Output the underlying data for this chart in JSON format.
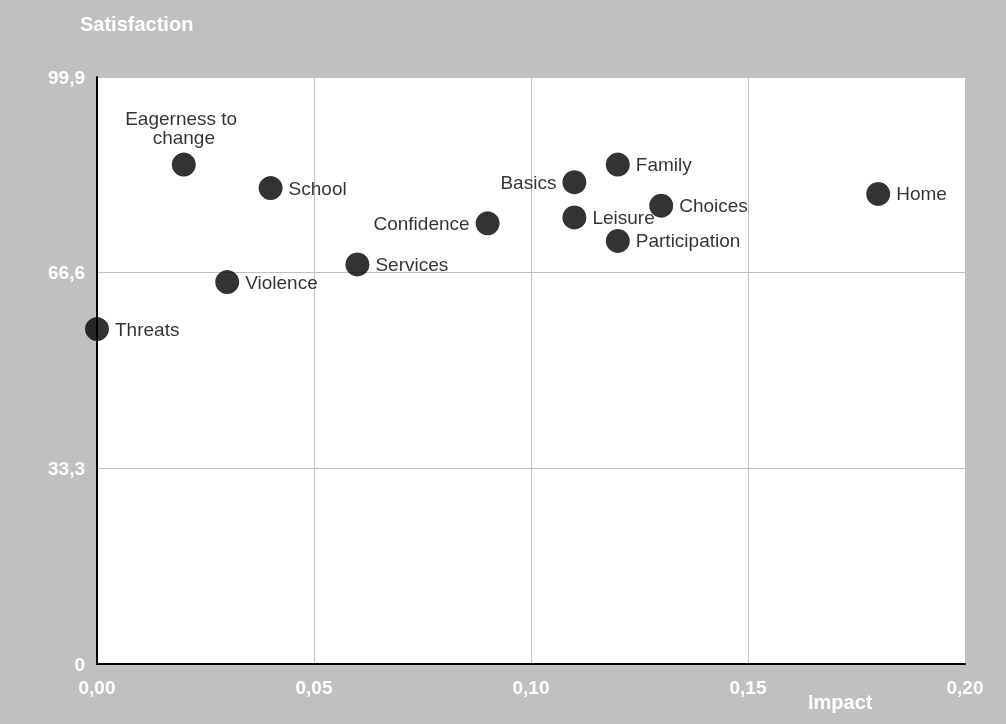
{
  "chart_data": {
    "type": "scatter",
    "xlabel": "Impact",
    "ylabel": "Satisfaction",
    "series": [
      {
        "name": "Eagerness to change",
        "color": "#000000",
        "x": [
          0.02
        ],
        "values": [
          85
        ]
      },
      {
        "name": "School",
        "color": "#000000",
        "x": [
          0.04
        ],
        "values": [
          81
        ]
      },
      {
        "name": "Violence",
        "color": "#000000",
        "x": [
          0.03
        ],
        "values": [
          65
        ]
      },
      {
        "name": "Threats",
        "color": "#000000",
        "x": [
          0.0
        ],
        "values": [
          57
        ]
      },
      {
        "name": "Services",
        "color": "#000000",
        "x": [
          0.06
        ],
        "values": [
          68
        ]
      },
      {
        "name": "Confidence",
        "color": "#000000",
        "x": [
          0.09
        ],
        "values": [
          75
        ]
      },
      {
        "name": "Basics",
        "color": "#000000",
        "x": [
          0.11
        ],
        "values": [
          82
        ]
      },
      {
        "name": "Leisure",
        "color": "#000000",
        "x": [
          0.11
        ],
        "values": [
          76
        ]
      },
      {
        "name": "Family",
        "color": "#000000",
        "x": [
          0.12
        ],
        "values": [
          85
        ]
      },
      {
        "name": "Participation",
        "color": "#000000",
        "x": [
          0.12
        ],
        "values": [
          72
        ]
      },
      {
        "name": "Choices",
        "color": "#000000",
        "x": [
          0.13
        ],
        "values": [
          78
        ]
      },
      {
        "name": "Home",
        "color": "#000000",
        "x": [
          0.18
        ],
        "values": [
          80
        ]
      }
    ],
    "marker": "circle",
    "grid": true,
    "xlim": [
      0,
      0.2
    ],
    "xticks": [
      {
        "value": 0,
        "label": "0,00"
      },
      {
        "value": 0.05,
        "label": "0,05"
      },
      {
        "value": 0.1,
        "label": "0,10"
      },
      {
        "value": 0.15,
        "label": "0,15"
      },
      {
        "value": 0.2,
        "label": "0,20"
      }
    ],
    "ylim": [
      0,
      99.9
    ],
    "yticks": [
      {
        "value": 0,
        "label": "0"
      },
      {
        "value": 33.3,
        "label": "33,3"
      },
      {
        "value": 66.6,
        "label": "66,6"
      },
      {
        "value": 99.9,
        "label": "99,9"
      }
    ]
  }
}
